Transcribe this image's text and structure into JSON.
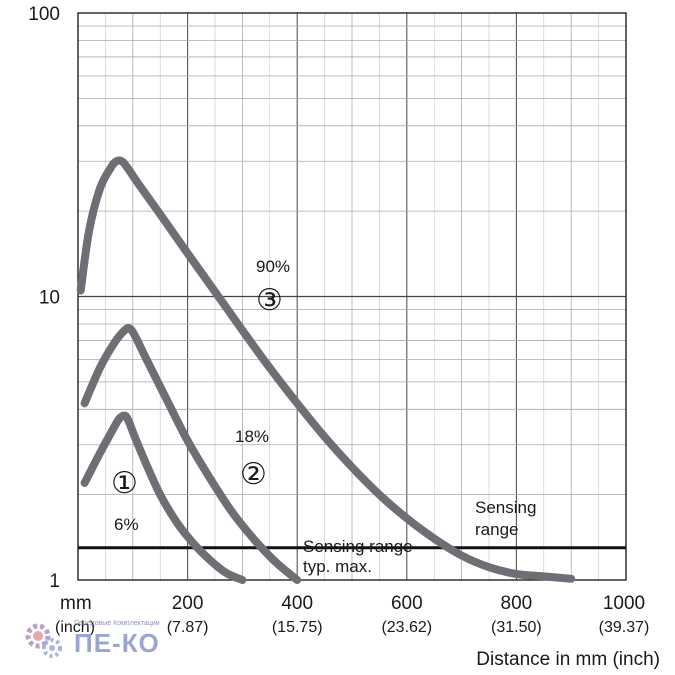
{
  "chart_data": {
    "type": "line",
    "title": "",
    "xlabel": "Distance in mm (inch)",
    "x_unit_label": "mm",
    "x_sub_unit_label": "(inch)",
    "xlim": [
      0,
      1000
    ],
    "ylim": [
      1,
      100
    ],
    "yscale": "log",
    "grid": true,
    "x_ticks": [
      {
        "value": 200,
        "label": "200",
        "sub": "(7.87)"
      },
      {
        "value": 400,
        "label": "400",
        "sub": "(15.75)"
      },
      {
        "value": 600,
        "label": "600",
        "sub": "(23.62)"
      },
      {
        "value": 800,
        "label": "800",
        "sub": "(31.50)"
      },
      {
        "value": 1000,
        "label": "1000",
        "sub": "(39.37)"
      }
    ],
    "y_ticks": [
      {
        "value": 1,
        "label": "1"
      },
      {
        "value": 10,
        "label": "10"
      },
      {
        "value": 100,
        "label": "100"
      }
    ],
    "series": [
      {
        "name": "6%",
        "marker": "①",
        "color": "#6d6f75",
        "x": [
          12,
          40,
          60,
          75,
          85,
          92,
          105,
          125,
          150,
          180,
          210,
          240,
          270,
          300
        ],
        "y": [
          2.2,
          2.8,
          3.3,
          3.7,
          3.8,
          3.65,
          3.15,
          2.55,
          2.0,
          1.6,
          1.35,
          1.18,
          1.06,
          1.0
        ]
      },
      {
        "name": "18%",
        "marker": "②",
        "color": "#6d6f75",
        "x": [
          12,
          40,
          65,
          85,
          95,
          105,
          125,
          160,
          200,
          240,
          280,
          320,
          360,
          400
        ],
        "y": [
          4.2,
          5.6,
          6.8,
          7.6,
          7.7,
          7.2,
          6.0,
          4.4,
          3.1,
          2.3,
          1.75,
          1.4,
          1.16,
          1.0
        ]
      },
      {
        "name": "90%",
        "marker": "③",
        "color": "#6d6f75",
        "x": [
          5,
          20,
          40,
          60,
          70,
          80,
          90,
          110,
          150,
          200,
          250,
          300,
          350,
          400,
          450,
          500,
          550,
          600,
          650,
          700,
          750,
          800,
          850,
          900
        ],
        "y": [
          10.5,
          17,
          24,
          28.5,
          30,
          30,
          28.5,
          25,
          19.5,
          14.2,
          10.4,
          7.6,
          5.6,
          4.2,
          3.2,
          2.5,
          2.0,
          1.65,
          1.4,
          1.22,
          1.11,
          1.05,
          1.03,
          1.01
        ]
      }
    ],
    "reference_line": {
      "y": 1.3,
      "label_line1": "Sensing range",
      "label_line2": "typ. max."
    },
    "annotations": {
      "right_label_line1": "Sensing",
      "right_label_line2": "range"
    }
  },
  "watermark": {
    "small_text": "Передовые Комплектации",
    "brand_text": "ПЕ-КО"
  }
}
